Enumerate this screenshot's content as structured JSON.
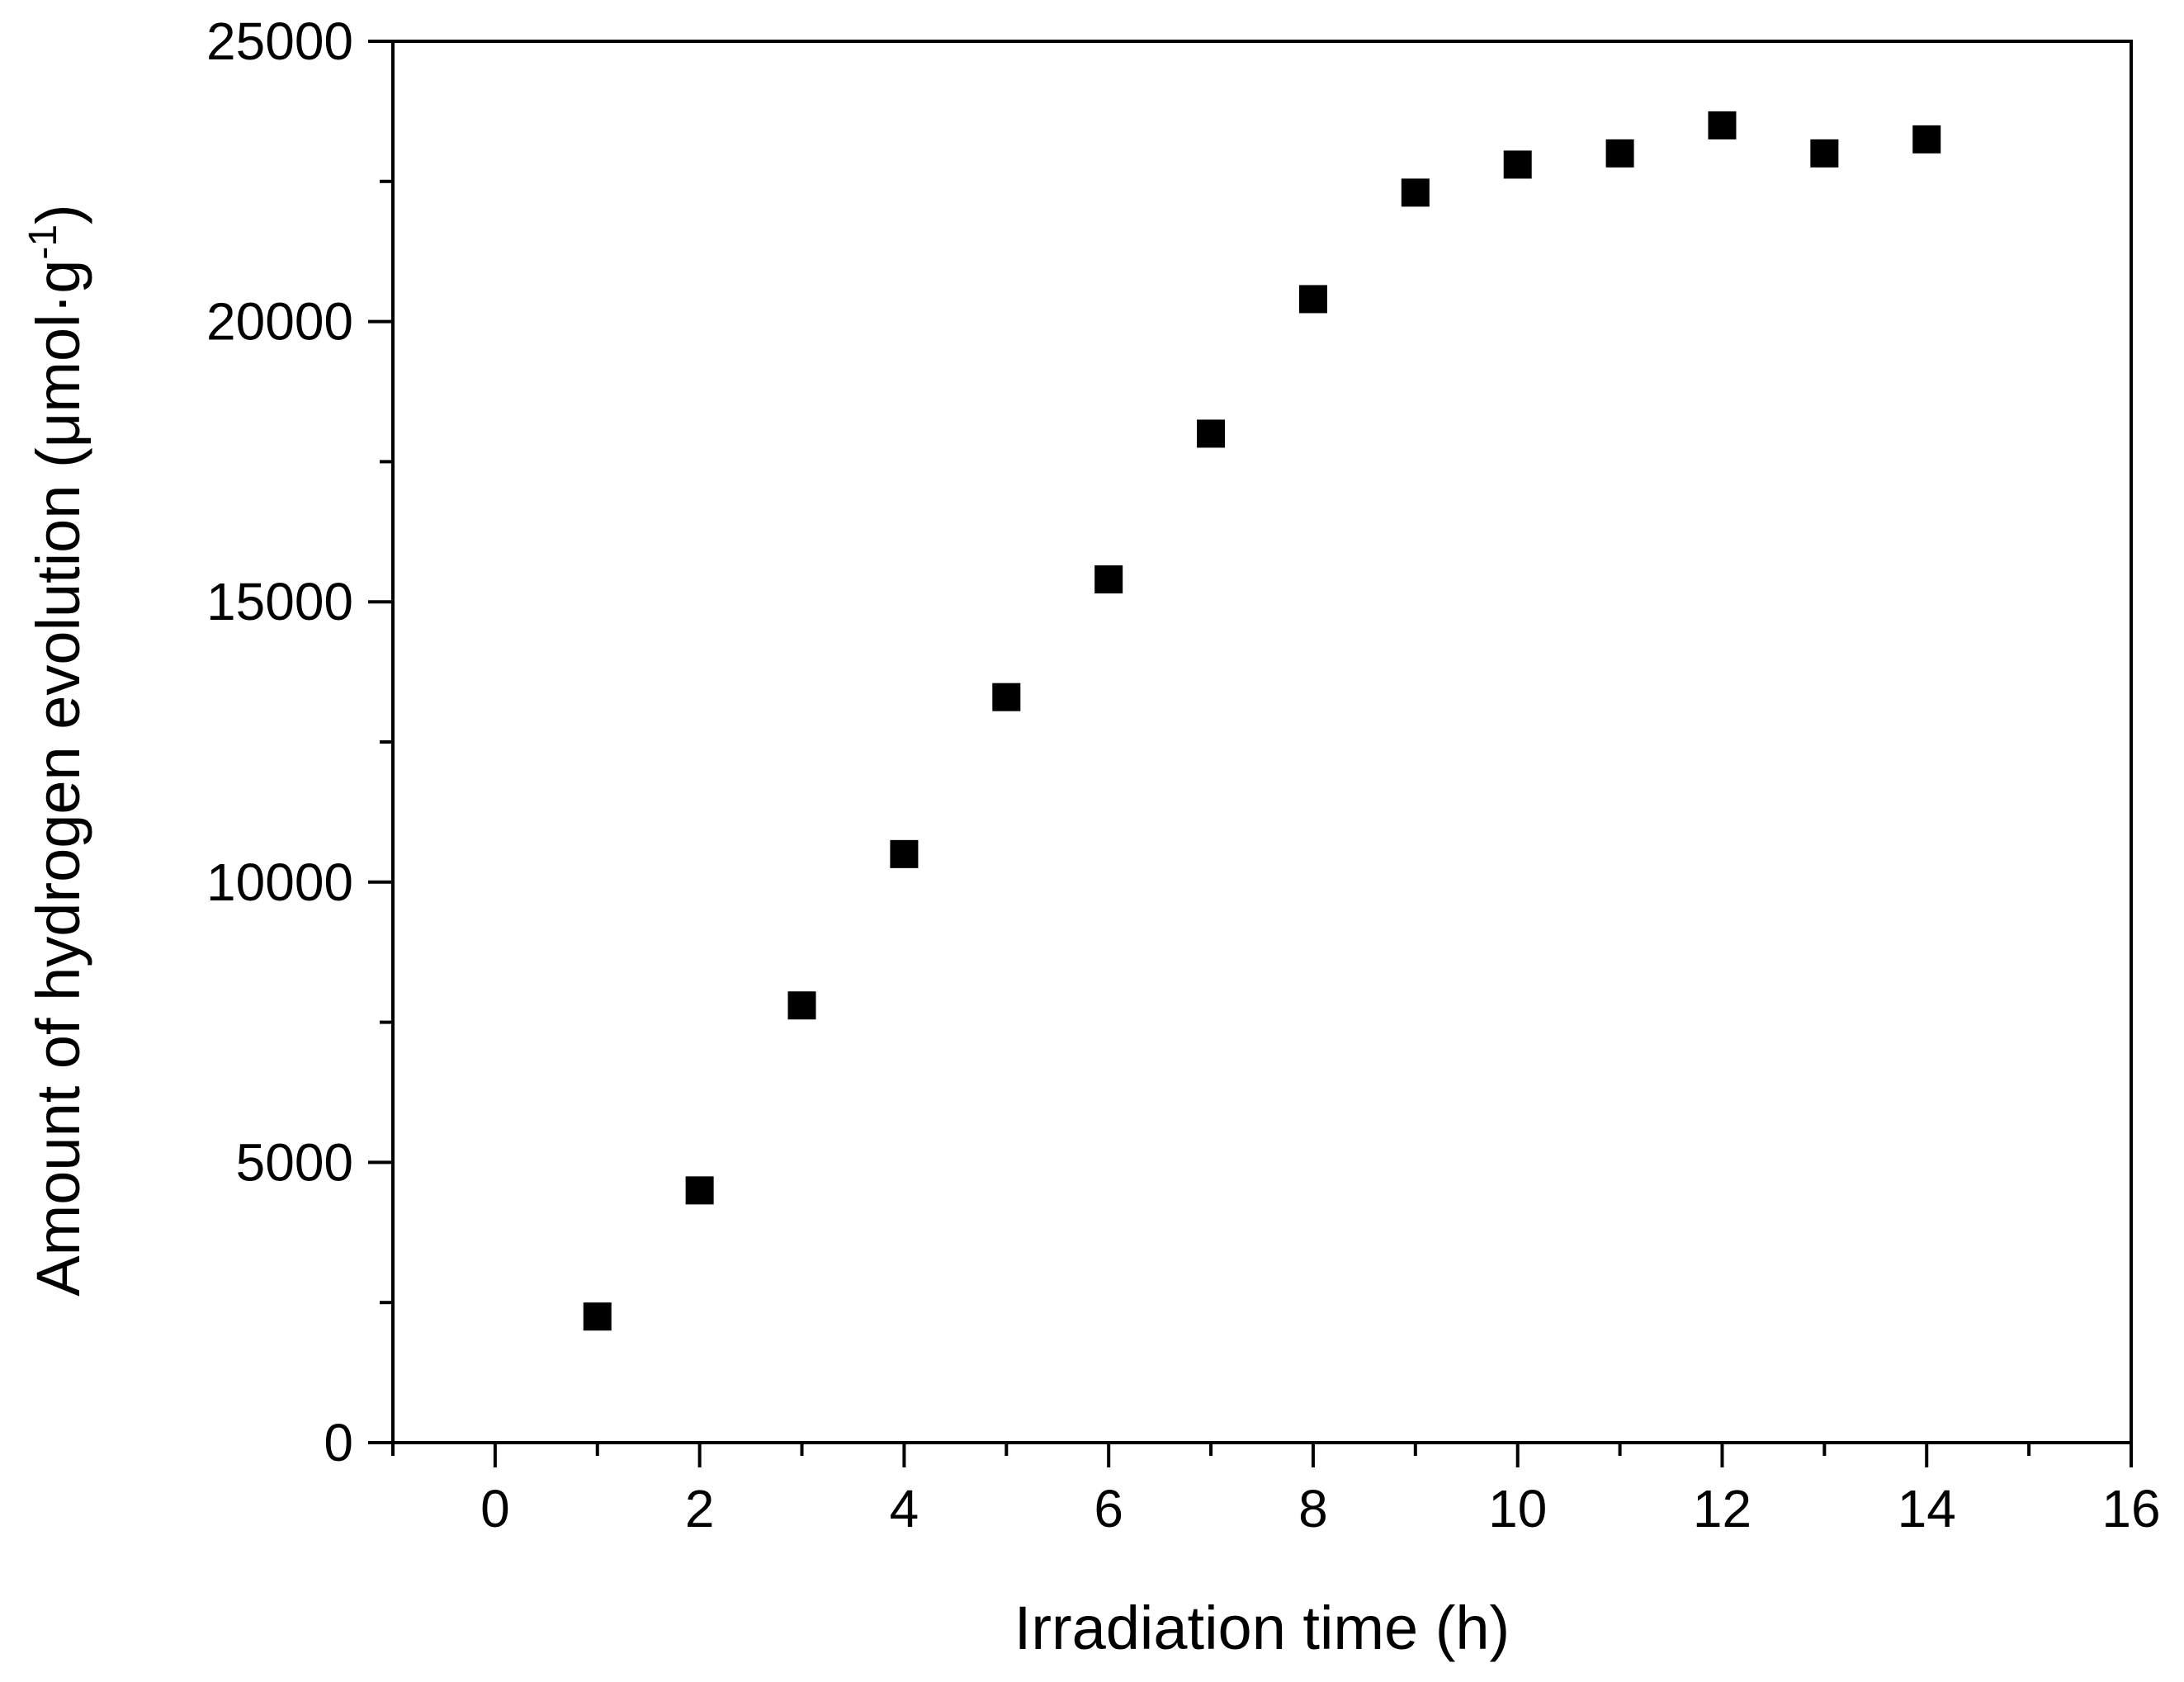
{
  "chart_data": {
    "type": "scatter",
    "title": "",
    "xlabel": "Irradiation time (h)",
    "ylabel": {
      "main": "Amount of hydrogen evolution (μmol·g",
      "superscript": "-1",
      "close": ")"
    },
    "xlim": [
      -1,
      16
    ],
    "ylim": [
      0,
      25000
    ],
    "x_ticks": [
      0,
      2,
      4,
      6,
      8,
      10,
      12,
      14,
      16
    ],
    "x_tick_labels": [
      "0",
      "2",
      "4",
      "6",
      "8",
      "10",
      "12",
      "14",
      "16"
    ],
    "x_minor_ticks": [
      -1,
      1,
      3,
      5,
      7,
      9,
      11,
      13,
      15
    ],
    "y_ticks": [
      0,
      5000,
      10000,
      15000,
      20000,
      25000
    ],
    "y_tick_labels": [
      "0",
      "5000",
      "10000",
      "15000",
      "20000",
      "25000"
    ],
    "y_minor_ticks": [
      2500,
      7500,
      12500,
      17500,
      22500
    ],
    "grid": false,
    "marker": "square",
    "marker_color": "#000000",
    "series": [
      {
        "name": "Hydrogen evolution",
        "x": [
          1,
          2,
          3,
          4,
          5,
          6,
          7,
          8,
          9,
          10,
          11,
          12,
          13,
          14
        ],
        "y": [
          2250,
          4500,
          7800,
          10500,
          13300,
          15400,
          18000,
          20400,
          22300,
          22800,
          23000,
          23500,
          23000,
          23250
        ]
      }
    ]
  }
}
